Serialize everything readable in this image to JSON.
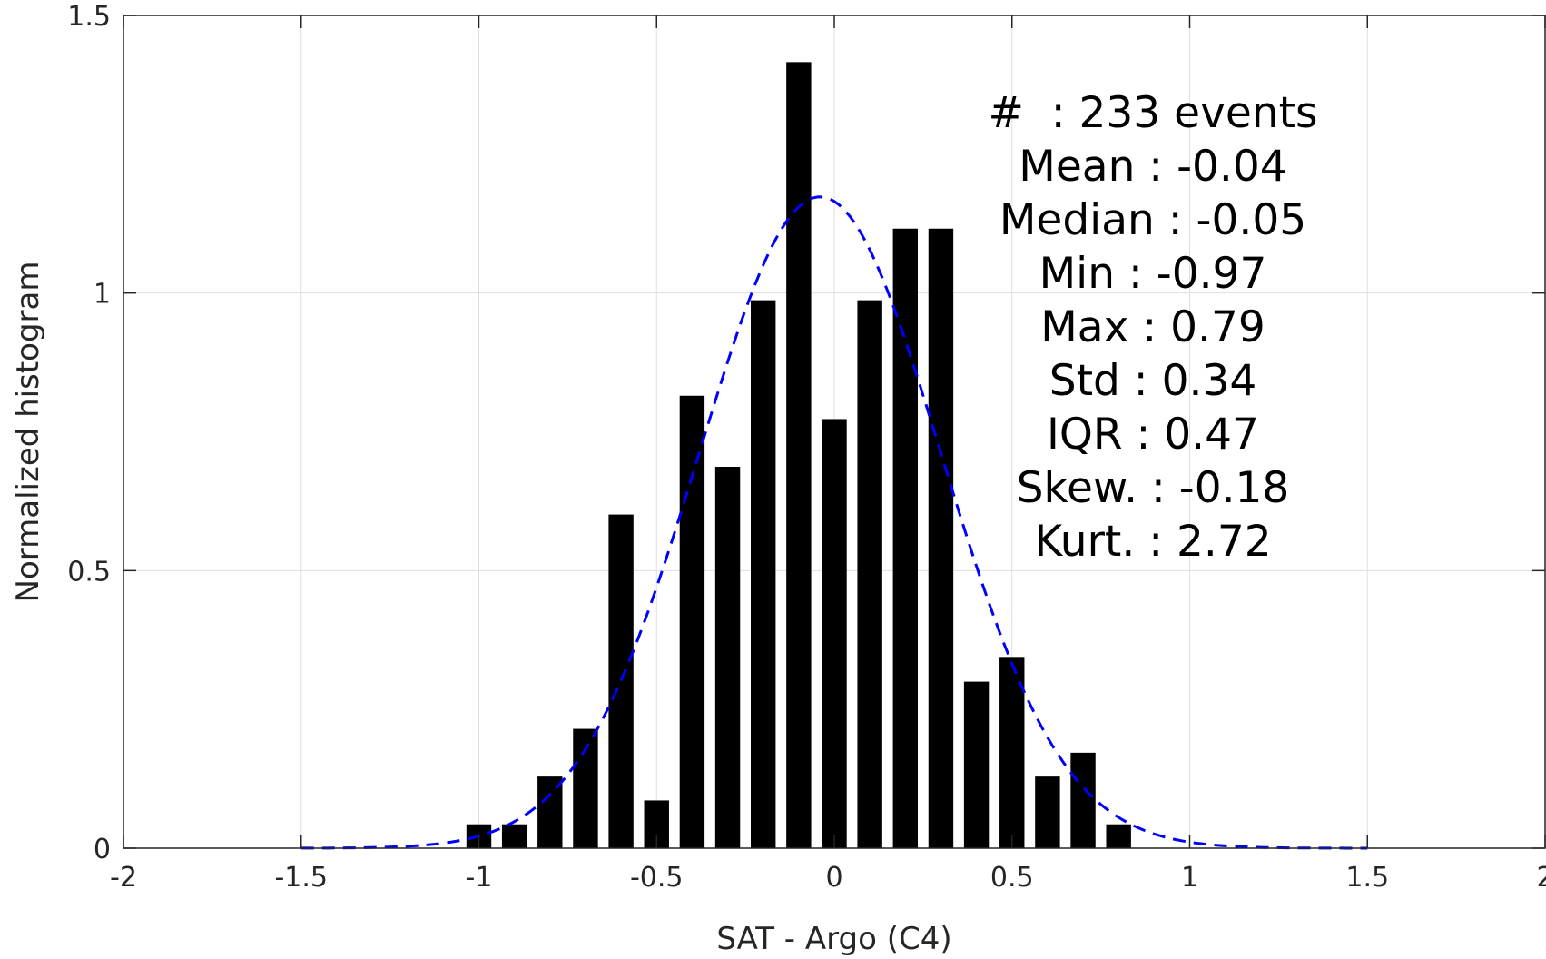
{
  "chart_data": {
    "type": "bar",
    "xlabel": "SAT - Argo (C4)",
    "ylabel": "Normalized histogram",
    "xlim": [
      -2,
      2
    ],
    "ylim": [
      0,
      1.5
    ],
    "grid": true,
    "x_ticks": [
      -2,
      -1.5,
      -1,
      -0.5,
      0,
      0.5,
      1,
      1.5,
      2
    ],
    "x_tick_labels": [
      "-2",
      "-1.5",
      "-1",
      "-0.5",
      "0",
      "0.5",
      "1",
      "1.5",
      "2"
    ],
    "y_ticks": [
      0,
      0.5,
      1,
      1.5
    ],
    "y_tick_labels": [
      "0",
      "0.5",
      "1",
      "1.5"
    ],
    "bar_width": 0.07,
    "bar_color": "#000000",
    "bins": [
      {
        "x": -1.0,
        "value": 0.043
      },
      {
        "x": -0.9,
        "value": 0.043
      },
      {
        "x": -0.8,
        "value": 0.129
      },
      {
        "x": -0.7,
        "value": 0.215
      },
      {
        "x": -0.6,
        "value": 0.601
      },
      {
        "x": -0.5,
        "value": 0.086
      },
      {
        "x": -0.4,
        "value": 0.815
      },
      {
        "x": -0.3,
        "value": 0.687
      },
      {
        "x": -0.2,
        "value": 0.987
      },
      {
        "x": -0.1,
        "value": 1.416
      },
      {
        "x": 0.0,
        "value": 0.773
      },
      {
        "x": 0.1,
        "value": 0.987
      },
      {
        "x": 0.2,
        "value": 1.116
      },
      {
        "x": 0.3,
        "value": 1.116
      },
      {
        "x": 0.4,
        "value": 0.3
      },
      {
        "x": 0.5,
        "value": 0.343
      },
      {
        "x": 0.6,
        "value": 0.129
      },
      {
        "x": 0.7,
        "value": 0.172
      },
      {
        "x": 0.8,
        "value": 0.043
      }
    ],
    "fit_curve": {
      "type": "normal",
      "mean": -0.04,
      "std": 0.34,
      "x_range": [
        -1.5,
        1.5
      ],
      "color": "#0000ff",
      "style": "dashed"
    },
    "annotations": [
      "#  : 233 events",
      "Mean : -0.04",
      "Median : -0.05",
      "Min : -0.97",
      "Max : 0.79",
      "Std : 0.34",
      "IQR : 0.47",
      "Skew. : -0.18",
      "Kurt. : 2.72"
    ]
  }
}
